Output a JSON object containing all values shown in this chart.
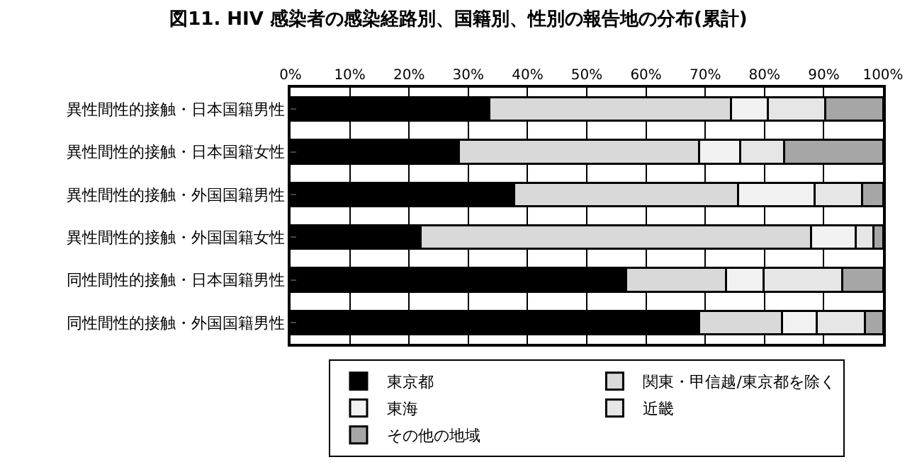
{
  "chart_data": {
    "type": "bar",
    "title": "図11. HIV 感染者の感染経路別、国籍別、性別の報告地の分布(累計)",
    "orientation": "horizontal",
    "stacked": true,
    "categories": [
      "異性間性的接触・日本国籍男性",
      "異性間性的接触・日本国籍女性",
      "異性間性的接触・外国国籍男性",
      "異性間性的接触・外国国籍女性",
      "同性間性的接触・日本国籍男性",
      "同性間性的接触・外国国籍男性"
    ],
    "series": [
      {
        "name": "東京都",
        "color": "#000000",
        "values": [
          33.6,
          28.4,
          37.7,
          21.9,
          56.6,
          69.0
        ]
      },
      {
        "name": "関東・甲信越/東京都を除く",
        "color": "#d9d9d9",
        "values": [
          40.8,
          40.6,
          37.8,
          66.0,
          16.9,
          14.0
        ]
      },
      {
        "name": "東海",
        "color": "#f2f2f2",
        "values": [
          6.2,
          6.9,
          12.9,
          7.5,
          6.3,
          5.8
        ]
      },
      {
        "name": "近畿",
        "color": "#e6e6e6",
        "values": [
          9.6,
          7.4,
          8.1,
          3.0,
          13.3,
          8.2
        ]
      },
      {
        "name": "その他の地域",
        "color": "#a6a6a6",
        "values": [
          9.8,
          16.7,
          3.5,
          1.6,
          6.9,
          3.0
        ]
      }
    ],
    "xlim": [
      0,
      100
    ],
    "xticks": [
      {
        "value": 0,
        "label": "0%"
      },
      {
        "value": 10,
        "label": "10%"
      },
      {
        "value": 20,
        "label": "20%"
      },
      {
        "value": 30,
        "label": "30%"
      },
      {
        "value": 40,
        "label": "40%"
      },
      {
        "value": 50,
        "label": "50%"
      },
      {
        "value": 60,
        "label": "60%"
      },
      {
        "value": 70,
        "label": "70%"
      },
      {
        "value": 80,
        "label": "80%"
      },
      {
        "value": 90,
        "label": "90%"
      },
      {
        "value": 100,
        "label": "100%"
      }
    ],
    "grid": "x",
    "legend": "bottom"
  }
}
